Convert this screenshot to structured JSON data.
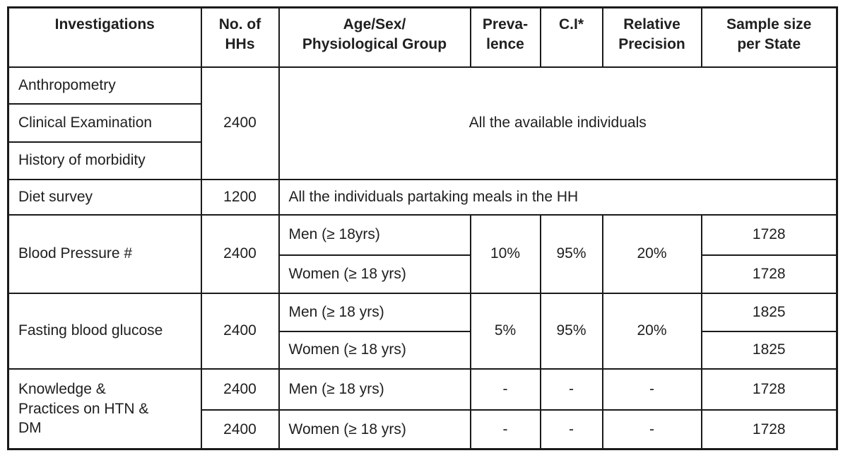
{
  "colors": {
    "text": "#202020",
    "border": "#1a1a1a",
    "background": "#ffffff"
  },
  "table": {
    "headers": [
      "Investigations",
      "No. of\nHHs",
      "Age/Sex/\nPhysiological Group",
      "Preva-\nlence",
      "C.I*",
      "Relative\nPrecision",
      "Sample size\nper State"
    ],
    "sections": [
      {
        "investigations": [
          "Anthropometry",
          "Clinical Examination",
          "History of morbidity"
        ],
        "hhs": "2400",
        "group_note": "All the available individuals"
      },
      {
        "investigation": "Diet survey",
        "hhs": "1200",
        "group_note": "All the individuals partaking meals in the HH"
      },
      {
        "investigation": "Blood Pressure #",
        "hhs": "2400",
        "groups": [
          "Men (≥ 18yrs)",
          "Women (≥ 18 yrs)"
        ],
        "prevalence": "10%",
        "ci": "95%",
        "relative_precision": "20%",
        "sample_sizes": [
          "1728",
          "1728"
        ]
      },
      {
        "investigation": "Fasting blood glucose",
        "hhs": "2400",
        "groups": [
          "Men (≥ 18 yrs)",
          "Women (≥ 18 yrs)"
        ],
        "prevalence": "5%",
        "ci": "95%",
        "relative_precision": "20%",
        "sample_sizes": [
          "1825",
          "1825"
        ]
      },
      {
        "investigation": "Knowledge &\nPractices on HTN &\nDM",
        "hhs": [
          "2400",
          "2400"
        ],
        "groups": [
          "Men (≥ 18 yrs)",
          "Women (≥ 18 yrs)"
        ],
        "prevalence": [
          "-",
          "-"
        ],
        "ci": [
          "-",
          "-"
        ],
        "relative_precision": [
          "-",
          "-"
        ],
        "sample_sizes": [
          "1728",
          "1728"
        ]
      }
    ]
  }
}
